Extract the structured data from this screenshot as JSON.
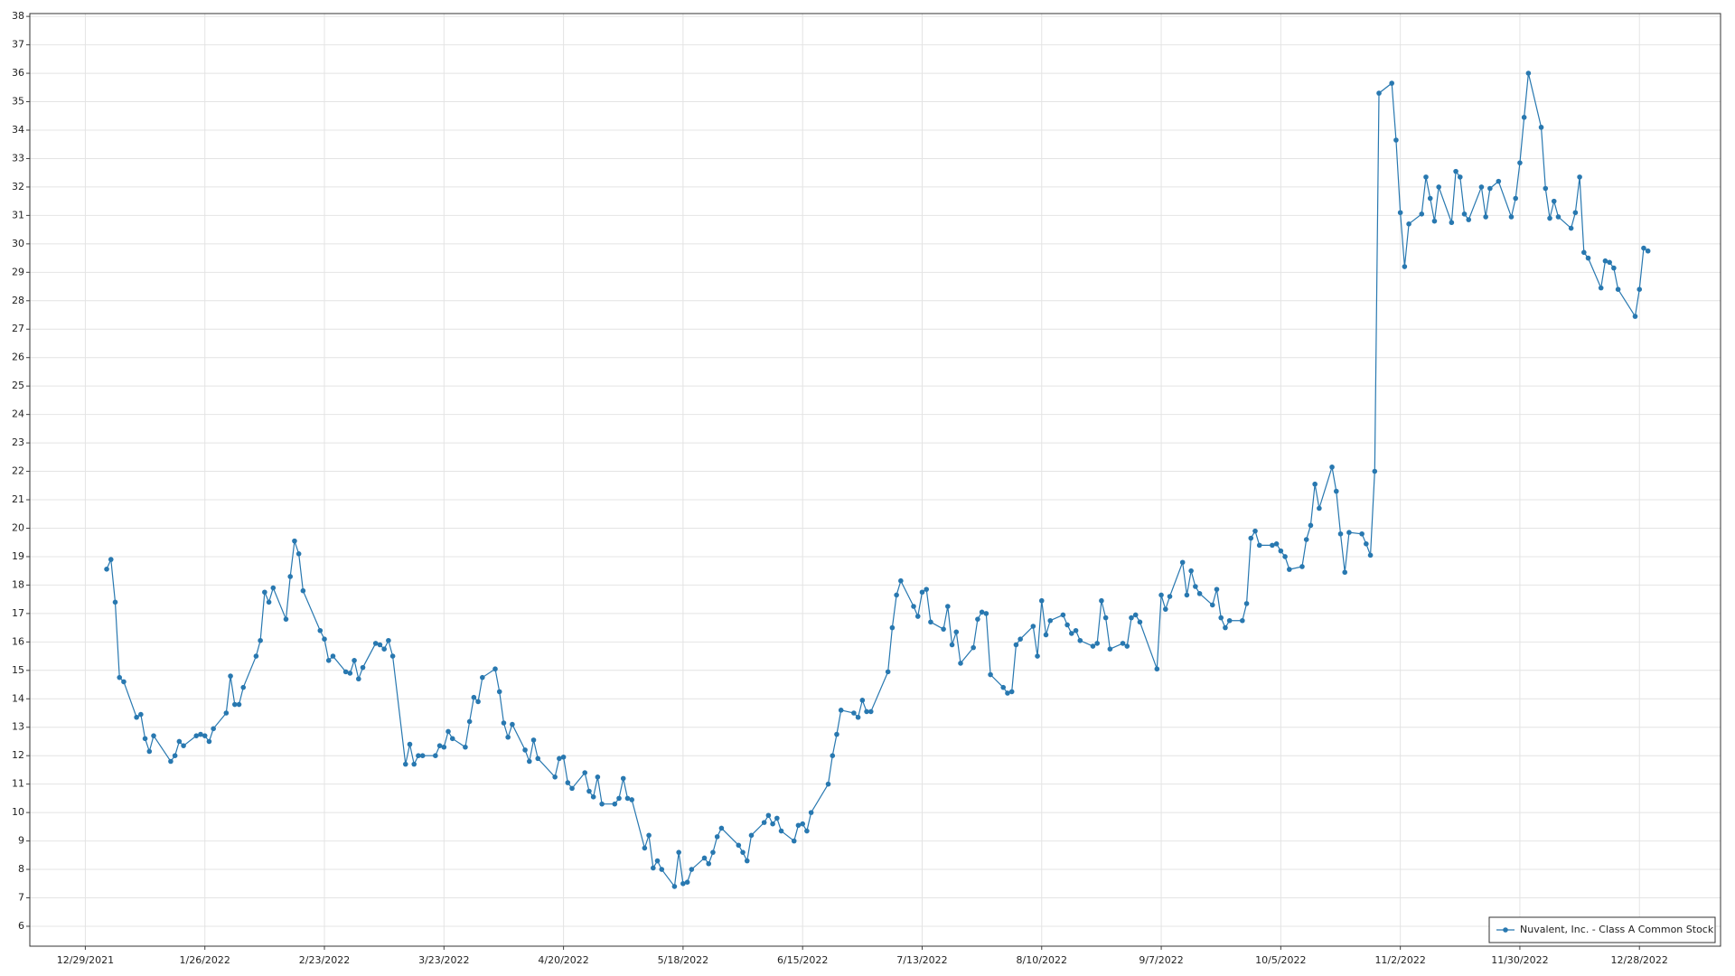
{
  "chart_data": {
    "type": "line",
    "x": [
      "1/3/2022",
      "1/4/2022",
      "1/5/2022",
      "1/6/2022",
      "1/7/2022",
      "1/10/2022",
      "1/11/2022",
      "1/12/2022",
      "1/13/2022",
      "1/14/2022",
      "1/18/2022",
      "1/19/2022",
      "1/20/2022",
      "1/21/2022",
      "1/24/2022",
      "1/25/2022",
      "1/26/2022",
      "1/27/2022",
      "1/28/2022",
      "1/31/2022",
      "2/1/2022",
      "2/2/2022",
      "2/3/2022",
      "2/4/2022",
      "2/7/2022",
      "2/8/2022",
      "2/9/2022",
      "2/10/2022",
      "2/11/2022",
      "2/14/2022",
      "2/15/2022",
      "2/16/2022",
      "2/17/2022",
      "2/18/2022",
      "2/22/2022",
      "2/23/2022",
      "2/24/2022",
      "2/25/2022",
      "2/28/2022",
      "3/1/2022",
      "3/2/2022",
      "3/3/2022",
      "3/4/2022",
      "3/7/2022",
      "3/8/2022",
      "3/9/2022",
      "3/10/2022",
      "3/11/2022",
      "3/14/2022",
      "3/15/2022",
      "3/16/2022",
      "3/17/2022",
      "3/18/2022",
      "3/21/2022",
      "3/22/2022",
      "3/23/2022",
      "3/24/2022",
      "3/25/2022",
      "3/28/2022",
      "3/29/2022",
      "3/30/2022",
      "3/31/2022",
      "4/1/2022",
      "4/4/2022",
      "4/5/2022",
      "4/6/2022",
      "4/7/2022",
      "4/8/2022",
      "4/11/2022",
      "4/12/2022",
      "4/13/2022",
      "4/14/2022",
      "4/18/2022",
      "4/19/2022",
      "4/20/2022",
      "4/21/2022",
      "4/22/2022",
      "4/25/2022",
      "4/26/2022",
      "4/27/2022",
      "4/28/2022",
      "4/29/2022",
      "5/2/2022",
      "5/3/2022",
      "5/4/2022",
      "5/5/2022",
      "5/6/2022",
      "5/9/2022",
      "5/10/2022",
      "5/11/2022",
      "5/12/2022",
      "5/13/2022",
      "5/16/2022",
      "5/17/2022",
      "5/18/2022",
      "5/19/2022",
      "5/20/2022",
      "5/23/2022",
      "5/24/2022",
      "5/25/2022",
      "5/26/2022",
      "5/27/2022",
      "5/31/2022",
      "6/1/2022",
      "6/2/2022",
      "6/3/2022",
      "6/6/2022",
      "6/7/2022",
      "6/8/2022",
      "6/9/2022",
      "6/10/2022",
      "6/13/2022",
      "6/14/2022",
      "6/15/2022",
      "6/16/2022",
      "6/17/2022",
      "6/21/2022",
      "6/22/2022",
      "6/23/2022",
      "6/24/2022",
      "6/27/2022",
      "6/28/2022",
      "6/29/2022",
      "6/30/2022",
      "7/1/2022",
      "7/5/2022",
      "7/6/2022",
      "7/7/2022",
      "7/8/2022",
      "7/11/2022",
      "7/12/2022",
      "7/13/2022",
      "7/14/2022",
      "7/15/2022",
      "7/18/2022",
      "7/19/2022",
      "7/20/2022",
      "7/21/2022",
      "7/22/2022",
      "7/25/2022",
      "7/26/2022",
      "7/27/2022",
      "7/28/2022",
      "7/29/2022",
      "8/1/2022",
      "8/2/2022",
      "8/3/2022",
      "8/4/2022",
      "8/5/2022",
      "8/8/2022",
      "8/9/2022",
      "8/10/2022",
      "8/11/2022",
      "8/12/2022",
      "8/15/2022",
      "8/16/2022",
      "8/17/2022",
      "8/18/2022",
      "8/19/2022",
      "8/22/2022",
      "8/23/2022",
      "8/24/2022",
      "8/25/2022",
      "8/26/2022",
      "8/29/2022",
      "8/30/2022",
      "8/31/2022",
      "9/1/2022",
      "9/2/2022",
      "9/6/2022",
      "9/7/2022",
      "9/8/2022",
      "9/9/2022",
      "9/12/2022",
      "9/13/2022",
      "9/14/2022",
      "9/15/2022",
      "9/16/2022",
      "9/19/2022",
      "9/20/2022",
      "9/21/2022",
      "9/22/2022",
      "9/23/2022",
      "9/26/2022",
      "9/27/2022",
      "9/28/2022",
      "9/29/2022",
      "9/30/2022",
      "10/3/2022",
      "10/4/2022",
      "10/5/2022",
      "10/6/2022",
      "10/7/2022",
      "10/10/2022",
      "10/11/2022",
      "10/12/2022",
      "10/13/2022",
      "10/14/2022",
      "10/17/2022",
      "10/18/2022",
      "10/19/2022",
      "10/20/2022",
      "10/21/2022",
      "10/24/2022",
      "10/25/2022",
      "10/26/2022",
      "10/27/2022",
      "10/28/2022",
      "10/31/2022",
      "11/1/2022",
      "11/2/2022",
      "11/3/2022",
      "11/4/2022",
      "11/7/2022",
      "11/8/2022",
      "11/9/2022",
      "11/10/2022",
      "11/11/2022",
      "11/14/2022",
      "11/15/2022",
      "11/16/2022",
      "11/17/2022",
      "11/18/2022",
      "11/21/2022",
      "11/22/2022",
      "11/23/2022",
      "11/25/2022",
      "11/28/2022",
      "11/29/2022",
      "11/30/2022",
      "12/1/2022",
      "12/2/2022",
      "12/5/2022",
      "12/6/2022",
      "12/7/2022",
      "12/8/2022",
      "12/9/2022",
      "12/12/2022",
      "12/13/2022",
      "12/14/2022",
      "12/15/2022",
      "12/16/2022",
      "12/19/2022",
      "12/20/2022",
      "12/21/2022",
      "12/22/2022",
      "12/23/2022",
      "12/27/2022",
      "12/28/2022",
      "12/29/2022",
      "12/30/2022"
    ],
    "series": [
      {
        "name": "Nuvalent, Inc. - Class A Common Stock",
        "color": "#2878b0",
        "values": [
          18.56,
          18.9,
          17.4,
          14.75,
          14.6,
          13.35,
          13.45,
          12.6,
          12.15,
          12.7,
          11.8,
          12.0,
          12.5,
          12.35,
          12.7,
          12.75,
          12.7,
          12.5,
          12.95,
          13.5,
          14.8,
          13.8,
          13.8,
          14.4,
          15.5,
          16.05,
          17.75,
          17.4,
          17.9,
          16.8,
          18.3,
          19.55,
          19.1,
          17.8,
          16.4,
          16.1,
          15.35,
          15.5,
          14.95,
          14.9,
          15.35,
          14.7,
          15.1,
          15.95,
          15.9,
          15.75,
          16.05,
          15.5,
          11.7,
          12.4,
          11.7,
          12.0,
          12.0,
          12.0,
          12.35,
          12.3,
          12.85,
          12.6,
          12.3,
          13.2,
          14.05,
          13.9,
          14.75,
          15.05,
          14.25,
          13.15,
          12.65,
          13.1,
          12.2,
          11.8,
          12.55,
          11.9,
          11.25,
          11.9,
          11.95,
          11.05,
          10.85,
          11.4,
          10.75,
          10.55,
          11.25,
          10.3,
          10.3,
          10.5,
          11.2,
          10.5,
          10.45,
          8.75,
          9.2,
          8.05,
          8.3,
          8.0,
          7.4,
          8.6,
          7.5,
          7.55,
          8.0,
          8.4,
          8.2,
          8.6,
          9.15,
          9.45,
          8.85,
          8.6,
          8.3,
          9.2,
          9.65,
          9.9,
          9.6,
          9.8,
          9.35,
          9.0,
          9.55,
          9.6,
          9.35,
          10.0,
          11.0,
          12.0,
          12.75,
          13.6,
          13.5,
          13.35,
          13.95,
          13.55,
          13.55,
          14.95,
          16.5,
          17.65,
          18.15,
          17.25,
          16.9,
          17.75,
          17.85,
          16.7,
          16.45,
          17.25,
          15.9,
          16.35,
          15.25,
          15.8,
          16.8,
          17.05,
          17.0,
          14.85,
          14.4,
          14.2,
          14.25,
          15.9,
          16.1,
          16.55,
          15.5,
          17.45,
          16.25,
          16.75,
          16.95,
          16.6,
          16.3,
          16.4,
          16.05,
          15.85,
          15.95,
          17.45,
          16.85,
          15.75,
          15.95,
          15.85,
          16.85,
          16.95,
          16.7,
          15.05,
          17.65,
          17.15,
          17.6,
          18.8,
          17.65,
          18.5,
          17.95,
          17.7,
          17.3,
          17.85,
          16.85,
          16.5,
          16.75,
          16.75,
          17.35,
          19.65,
          19.9,
          19.4,
          19.4,
          19.45,
          19.2,
          19.0,
          18.55,
          18.65,
          19.6,
          20.1,
          21.55,
          20.7,
          22.15,
          21.3,
          19.8,
          18.45,
          19.85,
          19.8,
          19.45,
          19.05,
          22.0,
          35.3,
          35.65,
          33.65,
          31.1,
          29.2,
          30.7,
          31.05,
          32.35,
          31.6,
          30.8,
          32.0,
          30.75,
          32.55,
          32.35,
          31.05,
          30.85,
          32.0,
          30.95,
          31.95,
          32.2,
          30.95,
          31.6,
          32.85,
          34.45,
          36.0,
          34.1,
          31.95,
          30.9,
          31.5,
          30.95,
          30.55,
          31.1,
          32.35,
          29.7,
          29.5,
          28.45,
          29.4,
          29.35,
          29.15,
          28.4,
          27.45,
          28.4,
          29.85,
          29.75
        ]
      }
    ],
    "xlim": [
      "12/16/2021",
      "1/16/2023"
    ],
    "xticks": [
      "12/29/2021",
      "1/26/2022",
      "2/23/2022",
      "3/23/2022",
      "4/20/2022",
      "5/18/2022",
      "6/15/2022",
      "7/13/2022",
      "8/10/2022",
      "9/7/2022",
      "10/5/2022",
      "11/2/2022",
      "11/30/2022",
      "12/28/2022"
    ],
    "ylim": [
      5.3,
      38.1
    ],
    "yticks": [
      6,
      7,
      8,
      9,
      10,
      11,
      12,
      13,
      14,
      15,
      16,
      17,
      18,
      19,
      20,
      21,
      22,
      23,
      24,
      25,
      26,
      27,
      28,
      29,
      30,
      31,
      32,
      33,
      34,
      35,
      36,
      37,
      38
    ],
    "grid": true,
    "legend": "lower right",
    "markers": true
  }
}
